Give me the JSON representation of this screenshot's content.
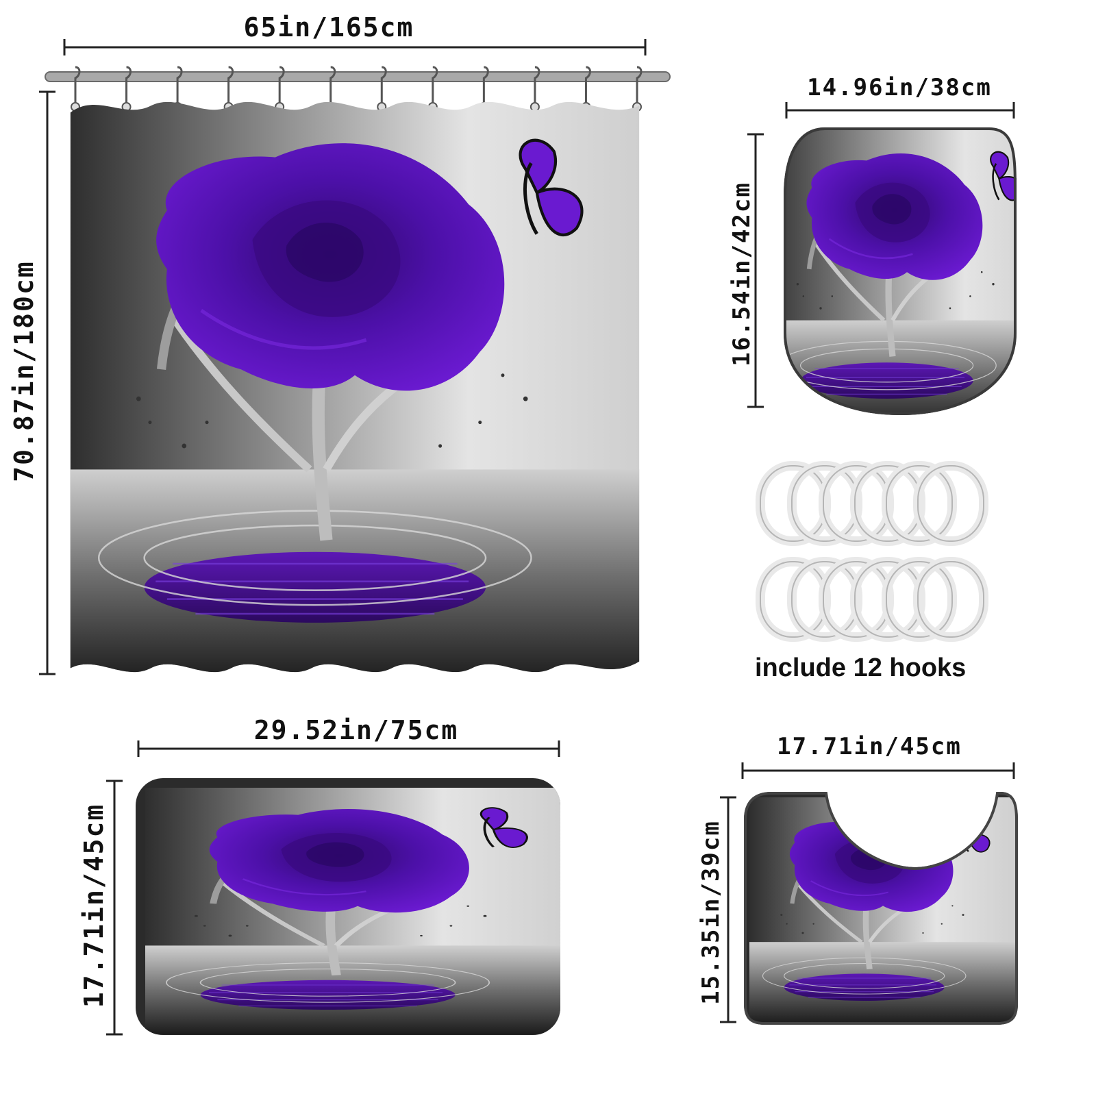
{
  "curtain": {
    "width_label": "65in/165cm",
    "height_label": "70.87in/180cm",
    "hook_count": 12
  },
  "lid_cover": {
    "width_label": "14.96in/38cm",
    "height_label": "16.54in/42cm"
  },
  "hooks": {
    "caption": "include 12 hooks"
  },
  "bath_mat": {
    "width_label": "29.52in/75cm",
    "height_label": "17.71in/45cm"
  },
  "contour_mat": {
    "width_label": "17.71in/45cm",
    "height_label": "15.35in/39cm"
  },
  "colors": {
    "rose_purple": "#5a12b8",
    "rose_dark": "#3a0a80",
    "background_gray": "#9a9a9a",
    "background_dark": "#2a2a2a",
    "text": "#111111"
  }
}
